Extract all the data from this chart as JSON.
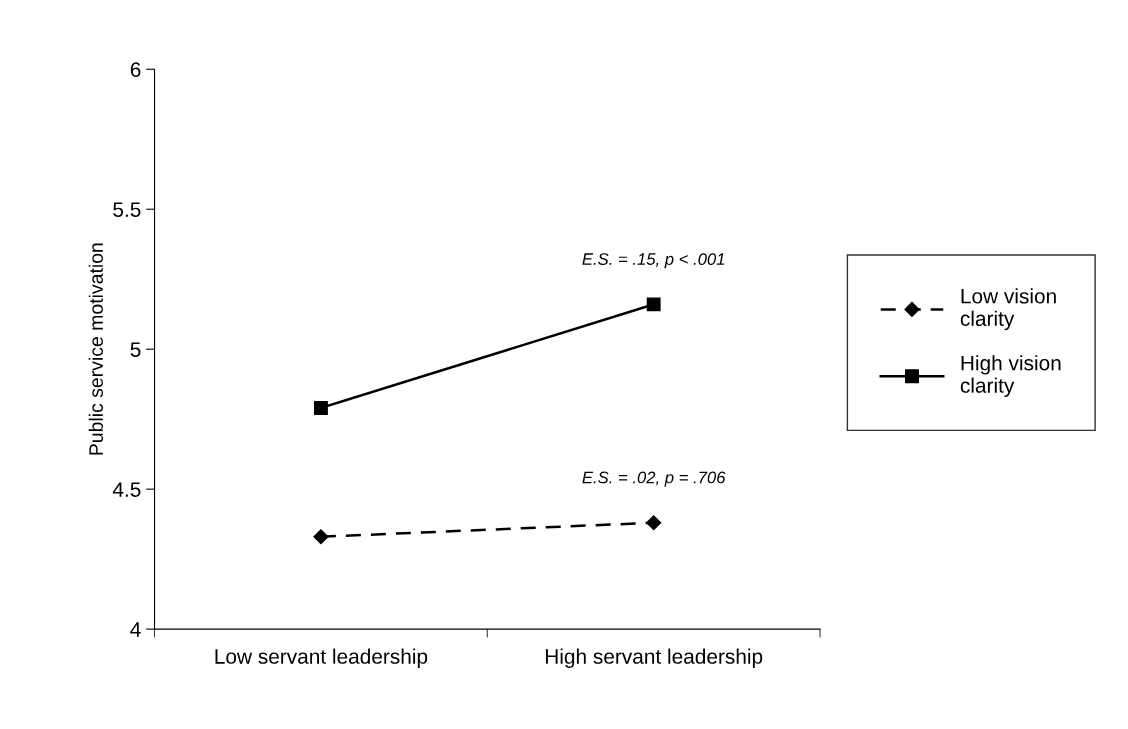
{
  "chart_data": {
    "type": "line",
    "ylabel": "Public service motivation",
    "categories": [
      "Low servant leadership",
      "High servant leadership"
    ],
    "series": [
      {
        "name": "Low vision clarity",
        "color": "#000000",
        "values": [
          4.33,
          4.38
        ],
        "marker": "diamond",
        "line_style": "dashed"
      },
      {
        "name": "High vision clarity",
        "color": "#000000",
        "values": [
          4.79,
          5.16
        ],
        "marker": "square",
        "line_style": "solid"
      }
    ],
    "annotations": [
      {
        "text": "E.S. = .15, p < .001",
        "x": "High servant leadership",
        "y": 5.16
      },
      {
        "text": "E.S. = .02, p = .706",
        "x": "High servant leadership",
        "y": 4.38
      }
    ],
    "ylim": [
      4,
      6
    ],
    "yticks": [
      4,
      4.5,
      5,
      5.5,
      6
    ],
    "grid": false,
    "legend": "right"
  }
}
